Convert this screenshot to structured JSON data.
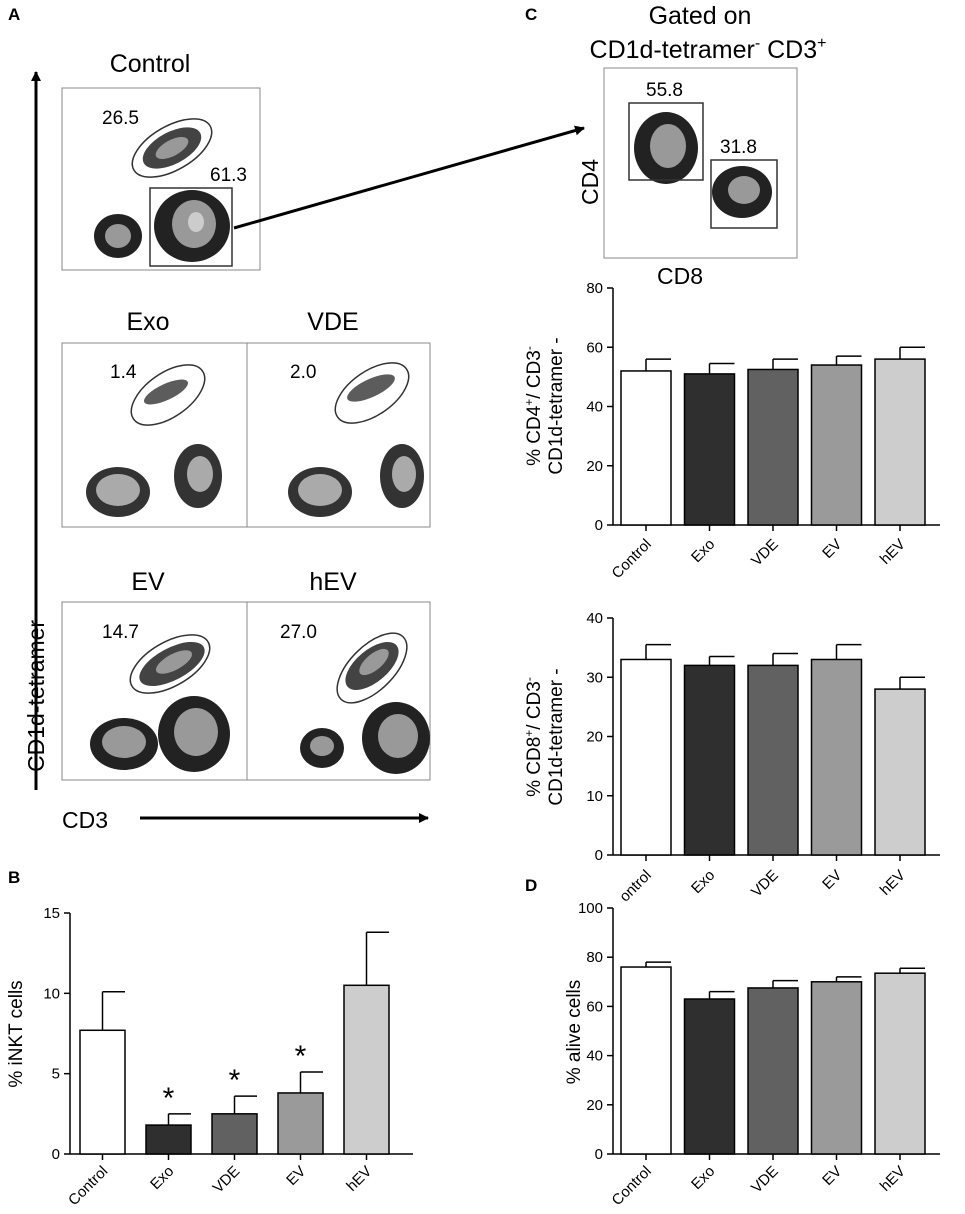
{
  "panels": {
    "A": "A",
    "B": "B",
    "C": "C",
    "D": "D"
  },
  "colors": {
    "Control": "#ffffff",
    "Exo": "#2f2f2f",
    "VDE": "#616161",
    "EV": "#9a9a9a",
    "hEV": "#cdcdcd"
  },
  "flow_plots": {
    "control": {
      "title": "Control",
      "gate1": "26.5",
      "gate2": "61.3"
    },
    "exo": {
      "title": "Exo",
      "gate1": "1.4"
    },
    "vde": {
      "title": "VDE",
      "gate1": "2.0"
    },
    "ev": {
      "title": "EV",
      "gate1": "14.7"
    },
    "hev": {
      "title": "hEV",
      "gate1": "27.0"
    },
    "y_axis": "CD1d-tetramer",
    "x_axis": "CD3"
  },
  "gated_plot": {
    "title_line1": "Gated on",
    "title_main": "CD1d-tetramer",
    "title_sup1": "-",
    "title_mid": " CD3",
    "title_sup2": "+",
    "gate1": "55.8",
    "gate2": "31.8",
    "y_axis": "CD4",
    "x_axis": "CD8"
  },
  "chart_data": [
    {
      "id": "cd4",
      "type": "bar",
      "panel": "C",
      "categories": [
        "Control",
        "Exo",
        "VDE",
        "EV",
        "hEV"
      ],
      "values": [
        52,
        51,
        52.5,
        54,
        56
      ],
      "errors": [
        4,
        3.5,
        3.5,
        3,
        4
      ],
      "ylim": [
        0,
        80
      ],
      "yticks": [
        0,
        20,
        40,
        60,
        80
      ],
      "ylabel_line1_pre": "% CD4",
      "ylabel_line1_sup1": "+",
      "ylabel_line1_mid": "/ CD3",
      "ylabel_line1_sup2": "-",
      "ylabel_line2": "CD1d-tetramer -",
      "xlabels": [
        "Control",
        "Exo",
        "VDE",
        "EV",
        "hEV"
      ],
      "significant": []
    },
    {
      "id": "cd8",
      "type": "bar",
      "panel": "C",
      "categories": [
        "Control",
        "Exo",
        "VDE",
        "EV",
        "hEV"
      ],
      "values": [
        33,
        32,
        32,
        33,
        28
      ],
      "errors": [
        2.5,
        1.5,
        2,
        2.5,
        2
      ],
      "ylim": [
        0,
        40
      ],
      "yticks": [
        0,
        10,
        20,
        30,
        40
      ],
      "ylabel_line1_pre": "% CD8",
      "ylabel_line1_sup1": "+",
      "ylabel_line1_mid": "/ CD3",
      "ylabel_line1_sup2": "-",
      "ylabel_line2": "CD1d-tetramer -",
      "xlabels": [
        "ontrol",
        "Exo",
        "VDE",
        "EV",
        "hEV"
      ],
      "significant": []
    },
    {
      "id": "inkt",
      "type": "bar",
      "panel": "B",
      "categories": [
        "Control",
        "Exo",
        "VDE",
        "EV",
        "hEV"
      ],
      "values": [
        7.7,
        1.8,
        2.5,
        3.8,
        10.5
      ],
      "errors": [
        2.4,
        0.7,
        1.1,
        1.3,
        3.3
      ],
      "ylim": [
        0,
        15
      ],
      "yticks": [
        0,
        5,
        10,
        15
      ],
      "ylabel": "% iNKT cells",
      "xlabels": [
        "Control",
        "Exo",
        "VDE",
        "EV",
        "hEV"
      ],
      "significant": [
        false,
        true,
        true,
        true,
        false
      ],
      "sig_mark": "*"
    },
    {
      "id": "alive",
      "type": "bar",
      "panel": "D",
      "categories": [
        "Control",
        "Exo",
        "VDE",
        "EV",
        "hEV"
      ],
      "values": [
        76,
        63,
        67.5,
        70,
        73.5
      ],
      "errors": [
        2,
        3,
        3,
        2,
        2
      ],
      "ylim": [
        0,
        100
      ],
      "yticks": [
        0,
        20,
        40,
        60,
        80,
        100
      ],
      "ylabel": "% alive cells",
      "xlabels": [
        "Control",
        "Exo",
        "VDE",
        "EV",
        "hEV"
      ],
      "significant": []
    }
  ]
}
